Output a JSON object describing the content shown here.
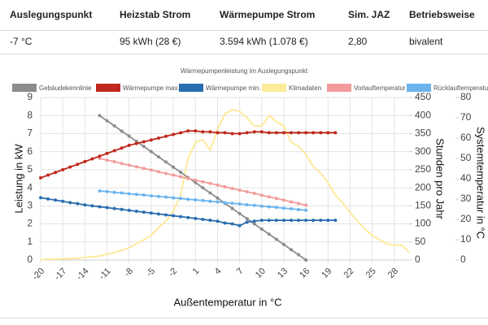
{
  "table": {
    "columns": [
      "Auslegungspunkt",
      "Heizstab Strom",
      "Wärmepumpe Strom",
      "Sim. JAZ",
      "Betriebsweise"
    ],
    "rows": [
      [
        "-7 °C",
        "95 kWh (28 €)",
        "3.594 kWh (1.078 €)",
        "2,80",
        "bivalent"
      ]
    ]
  },
  "chart_data": {
    "type": "line",
    "title": "Wärmepumpenleistung im Auslegungspunkt",
    "xlabel": "Außentemperatur in °C",
    "ylabel": "Leistung in kW",
    "y2label": "Stunden pro Jahr",
    "y3label": "Systemtemperatur in °C",
    "xlim": [
      -20,
      30
    ],
    "xticks": [
      -20,
      -17,
      -14,
      -11,
      -8,
      -5,
      -2,
      1,
      4,
      7,
      10,
      13,
      16,
      19,
      22,
      25,
      28
    ],
    "ylim": [
      0,
      9
    ],
    "yticks": [
      0,
      1,
      2,
      3,
      4,
      5,
      6,
      7,
      8,
      9
    ],
    "y2lim": [
      0,
      450
    ],
    "y2ticks": [
      0,
      50,
      100,
      150,
      200,
      250,
      300,
      350,
      400,
      450
    ],
    "y3lim": [
      0,
      80
    ],
    "y3ticks": [
      0,
      10,
      20,
      30,
      40,
      50,
      60,
      70,
      80
    ],
    "grid": true,
    "series": [
      {
        "name": "Gebäudekennlinie",
        "color": "#8c8c8c",
        "axis": "y",
        "markers": true,
        "x": [
          -12,
          -11,
          -10,
          -9,
          -8,
          -7,
          -6,
          -5,
          -4,
          -3,
          -2,
          -1,
          0,
          1,
          2,
          3,
          4,
          5,
          6,
          7,
          8,
          9,
          10,
          11,
          12,
          13,
          14,
          15,
          16
        ],
        "values": [
          8.0,
          7.71,
          7.43,
          7.14,
          6.86,
          6.57,
          6.29,
          6.0,
          5.71,
          5.43,
          5.14,
          4.86,
          4.57,
          4.29,
          4.0,
          3.71,
          3.43,
          3.14,
          2.86,
          2.57,
          2.29,
          2.0,
          1.71,
          1.43,
          1.14,
          0.86,
          0.57,
          0.29,
          0.0
        ]
      },
      {
        "name": "Wärmepumpe max.",
        "color": "#c0281c",
        "axis": "y",
        "markers": true,
        "x": [
          -20,
          -19,
          -18,
          -17,
          -16,
          -15,
          -14,
          -13,
          -12,
          -11,
          -10,
          -9,
          -8,
          -7,
          -6,
          -5,
          -4,
          -3,
          -2,
          -1,
          0,
          1,
          2,
          3,
          4,
          5,
          6,
          7,
          8,
          9,
          10,
          11,
          12,
          13,
          14,
          15,
          16,
          17,
          18,
          19,
          20
        ],
        "values": [
          4.55,
          4.7,
          4.85,
          5.0,
          5.15,
          5.3,
          5.45,
          5.6,
          5.75,
          5.9,
          6.05,
          6.2,
          6.35,
          6.45,
          6.55,
          6.65,
          6.75,
          6.85,
          6.95,
          7.05,
          7.15,
          7.15,
          7.1,
          7.1,
          7.05,
          7.05,
          7.0,
          7.0,
          7.05,
          7.1,
          7.1,
          7.05,
          7.05,
          7.05,
          7.05,
          7.05,
          7.05,
          7.05,
          7.05,
          7.05,
          7.05
        ]
      },
      {
        "name": "Wärmepumpe min.",
        "color": "#2a6db0",
        "axis": "y",
        "markers": true,
        "x": [
          -20,
          -19,
          -18,
          -17,
          -16,
          -15,
          -14,
          -13,
          -12,
          -11,
          -10,
          -9,
          -8,
          -7,
          -6,
          -5,
          -4,
          -3,
          -2,
          -1,
          0,
          1,
          2,
          3,
          4,
          5,
          6,
          7,
          8,
          9,
          10,
          11,
          12,
          13,
          14,
          15,
          16,
          17,
          18,
          19,
          20
        ],
        "values": [
          3.45,
          3.38,
          3.32,
          3.25,
          3.18,
          3.12,
          3.05,
          3.0,
          2.95,
          2.9,
          2.85,
          2.8,
          2.75,
          2.7,
          2.65,
          2.6,
          2.55,
          2.5,
          2.45,
          2.4,
          2.35,
          2.3,
          2.25,
          2.2,
          2.15,
          2.05,
          2.0,
          1.9,
          2.1,
          2.15,
          2.2,
          2.2,
          2.2,
          2.2,
          2.2,
          2.2,
          2.2,
          2.2,
          2.2,
          2.2,
          2.2
        ]
      },
      {
        "name": "Klimadaten",
        "color": "#fdeb9c",
        "axis": "y2",
        "markers": false,
        "x": [
          -20,
          -19,
          -18,
          -17,
          -16,
          -15,
          -14,
          -13,
          -12,
          -11,
          -10,
          -9,
          -8,
          -7,
          -6,
          -5,
          -4,
          -3,
          -2,
          -1,
          0,
          1,
          2,
          3,
          4,
          5,
          6,
          7,
          8,
          9,
          10,
          11,
          12,
          13,
          14,
          15,
          16,
          17,
          18,
          19,
          20,
          21,
          22,
          23,
          24,
          25,
          26,
          27,
          28,
          29,
          30
        ],
        "values": [
          1,
          2,
          2,
          3,
          4,
          5,
          7,
          9,
          11,
          16,
          20,
          27,
          34,
          45,
          56,
          68,
          90,
          108,
          135,
          180,
          281,
          326,
          333,
          304,
          360,
          405,
          416,
          412,
          394,
          371,
          371,
          400,
          383,
          371,
          326,
          315,
          292,
          259,
          241,
          214,
          180,
          158,
          131,
          108,
          86,
          68,
          56,
          45,
          41,
          41,
          22
        ]
      },
      {
        "name": "Vorlauftemperatur",
        "color": "#f29b9b",
        "axis": "y3",
        "markers": true,
        "x": [
          -12,
          -11,
          -10,
          -9,
          -8,
          -7,
          -6,
          -5,
          -4,
          -3,
          -2,
          -1,
          0,
          1,
          2,
          3,
          4,
          5,
          6,
          7,
          8,
          9,
          10,
          11,
          12,
          13,
          14,
          15,
          16
        ],
        "values": [
          50,
          49.2,
          48.4,
          47.5,
          46.7,
          45.9,
          45.1,
          44.3,
          43.4,
          42.6,
          41.8,
          41.0,
          40.1,
          39.3,
          38.5,
          37.7,
          36.9,
          36.0,
          35.2,
          34.4,
          33.6,
          32.8,
          31.9,
          31.1,
          30.3,
          29.5,
          28.6,
          27.8,
          27.0
        ]
      },
      {
        "name": "Rücklauftemperatur",
        "color": "#6ab4ee",
        "axis": "y3",
        "markers": true,
        "x": [
          -12,
          -11,
          -10,
          -9,
          -8,
          -7,
          -6,
          -5,
          -4,
          -3,
          -2,
          -1,
          0,
          1,
          2,
          3,
          4,
          5,
          6,
          7,
          8,
          9,
          10,
          11,
          12,
          13,
          14,
          15,
          16
        ],
        "values": [
          34,
          33.7,
          33.3,
          33.0,
          32.6,
          32.3,
          32.0,
          31.6,
          31.3,
          31.0,
          30.6,
          30.3,
          29.9,
          29.6,
          29.3,
          28.9,
          28.6,
          28.2,
          27.9,
          27.6,
          27.2,
          26.9,
          26.5,
          26.2,
          25.9,
          25.5,
          25.2,
          24.8,
          24.5
        ]
      }
    ]
  }
}
